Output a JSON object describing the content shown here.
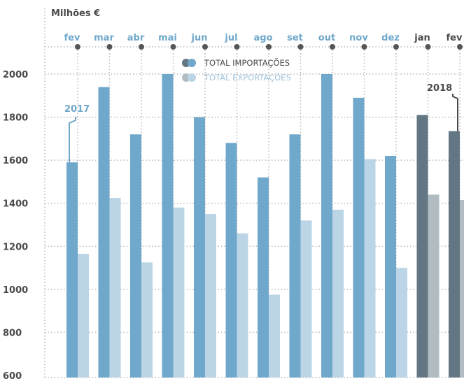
{
  "chart_data": {
    "type": "bar",
    "ylabel": "Milhões €",
    "ylim": [
      600,
      2100
    ],
    "yticks": [
      600,
      800,
      1000,
      1200,
      1400,
      1600,
      1800,
      2000
    ],
    "categories": [
      "fev",
      "mar",
      "abr",
      "mai",
      "jun",
      "jul",
      "ago",
      "set",
      "out",
      "nov",
      "dez",
      "jan",
      "fev"
    ],
    "series": [
      {
        "name": "TOTAL IMPORTAÇÕES",
        "values": [
          1590,
          1940,
          1720,
          2000,
          1800,
          1680,
          1520,
          1720,
          2000,
          1890,
          1620,
          1810,
          1735
        ]
      },
      {
        "name": "TOTAL EXPORTAÇÕES",
        "values": [
          1165,
          1425,
          1125,
          1380,
          1350,
          1260,
          975,
          1320,
          1370,
          1605,
          1100,
          1440,
          1415
        ]
      }
    ],
    "year_markers": [
      {
        "label": "2017",
        "category_index": 0
      },
      {
        "label": "2018",
        "category_index": 12
      }
    ],
    "grid": true,
    "legend_position": "top-center",
    "colors": {
      "imports_2017": "#6fa8cb",
      "exports_2017": "#bcd5e6",
      "imports_2018": "#627783",
      "exports_2018": "#b1bcc2",
      "month_2017": "#6fa8cb",
      "month_2018": "#4a4a4a",
      "axis_text": "#4a4a4a",
      "grid": "#b9b9b9"
    }
  }
}
